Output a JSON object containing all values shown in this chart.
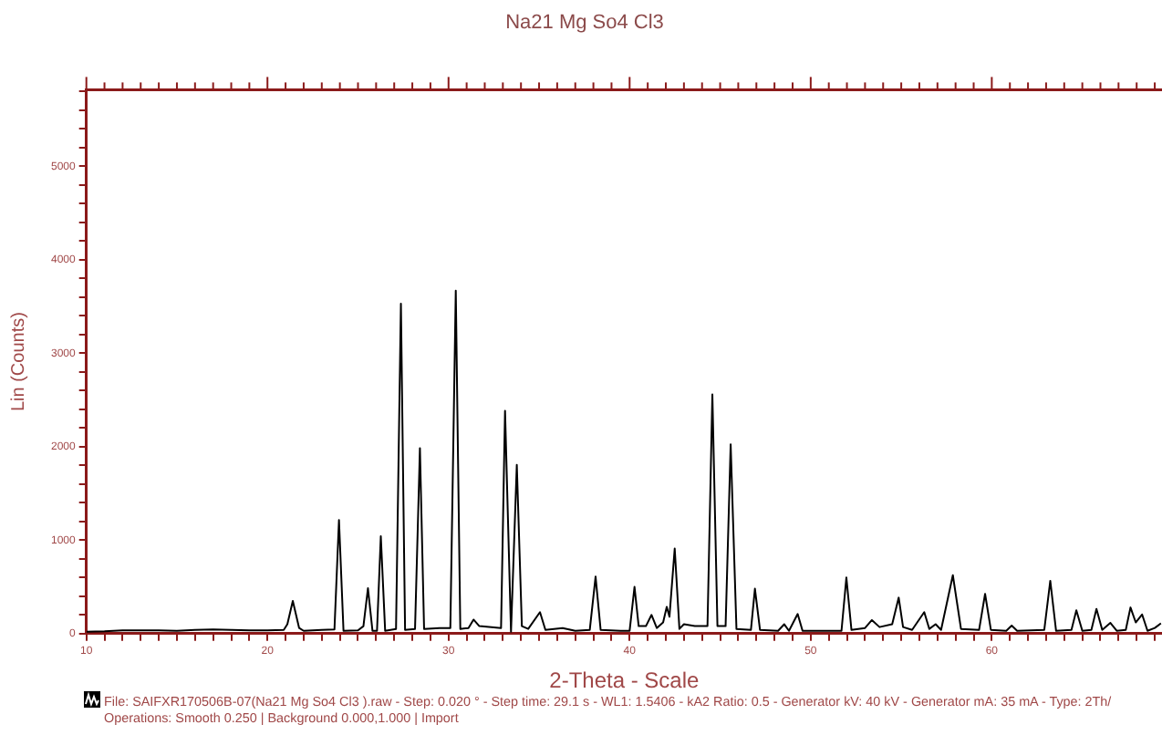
{
  "chart_data": {
    "type": "line",
    "title": "Na21 Mg So4 Cl3",
    "xlabel": "2-Theta - Scale",
    "ylabel": "Lin (Counts)",
    "annotations": [
      "File: SAIFXR170506B-07(Na21 Mg So4 Cl3 ).raw - Step: 0.020 ° - Step time: 29.1 s - WL1: 1.5406 - kA2 Ratio: 0.5 - Generator kV: 40 kV - Generator mA: 35 mA - Type: 2Th/",
      "Operations: Smooth 0.250 | Background 0.000,1.000 | Import"
    ],
    "xlim": [
      10,
      69.4
    ],
    "ylim": [
      0,
      5820
    ],
    "marker": "none",
    "xticks": [
      10,
      {
        "value": 11,
        "label": null
      },
      {
        "value": 12,
        "label": null
      },
      {
        "value": 13,
        "label": null
      },
      {
        "value": 14,
        "label": null
      },
      {
        "value": 15,
        "label": null
      },
      {
        "value": 16,
        "label": null
      },
      {
        "value": 17,
        "label": null
      },
      {
        "value": 18,
        "label": null
      },
      {
        "value": 19,
        "label": null
      },
      20,
      {
        "value": 21,
        "label": null
      },
      {
        "value": 22,
        "label": null
      },
      {
        "value": 23,
        "label": null
      },
      {
        "value": 24,
        "label": null
      },
      {
        "value": 25,
        "label": null
      },
      {
        "value": 26,
        "label": null
      },
      {
        "value": 27,
        "label": null
      },
      {
        "value": 28,
        "label": null
      },
      {
        "value": 29,
        "label": null
      },
      30,
      {
        "value": 31,
        "label": null
      },
      {
        "value": 32,
        "label": null
      },
      {
        "value": 33,
        "label": null
      },
      {
        "value": 34,
        "label": null
      },
      {
        "value": 35,
        "label": null
      },
      {
        "value": 36,
        "label": null
      },
      {
        "value": 37,
        "label": null
      },
      {
        "value": 38,
        "label": null
      },
      {
        "value": 39,
        "label": null
      },
      40,
      {
        "value": 41,
        "label": null
      },
      {
        "value": 42,
        "label": null
      },
      {
        "value": 43,
        "label": null
      },
      {
        "value": 44,
        "label": null
      },
      {
        "value": 45,
        "label": null
      },
      {
        "value": 46,
        "label": null
      },
      {
        "value": 47,
        "label": null
      },
      {
        "value": 48,
        "label": null
      },
      {
        "value": 49,
        "label": null
      },
      50,
      {
        "value": 51,
        "label": null
      },
      {
        "value": 52,
        "label": null
      },
      {
        "value": 53,
        "label": null
      },
      {
        "value": 54,
        "label": null
      },
      {
        "value": 55,
        "label": null
      },
      {
        "value": 56,
        "label": null
      },
      {
        "value": 57,
        "label": null
      },
      {
        "value": 58,
        "label": null
      },
      {
        "value": 59,
        "label": null
      },
      60,
      {
        "value": 61,
        "label": null
      },
      {
        "value": 62,
        "label": null
      },
      {
        "value": 63,
        "label": null
      },
      {
        "value": 64,
        "label": null
      },
      {
        "value": 65,
        "label": null
      },
      {
        "value": 66,
        "label": null
      },
      {
        "value": 67,
        "label": null
      },
      {
        "value": 68,
        "label": null
      },
      {
        "value": 69,
        "label": null
      }
    ],
    "yticks": [
      0,
      {
        "value": 200,
        "label": null
      },
      {
        "value": 400,
        "label": null
      },
      {
        "value": 600,
        "label": null
      },
      {
        "value": 800,
        "label": null
      },
      1000,
      {
        "value": 1200,
        "label": null
      },
      {
        "value": 1400,
        "label": null
      },
      {
        "value": 1600,
        "label": null
      },
      {
        "value": 1800,
        "label": null
      },
      2000,
      {
        "value": 2200,
        "label": null
      },
      {
        "value": 2400,
        "label": null
      },
      {
        "value": 2600,
        "label": null
      },
      {
        "value": 2800,
        "label": null
      },
      3000,
      {
        "value": 3200,
        "label": null
      },
      {
        "value": 3400,
        "label": null
      },
      {
        "value": 3600,
        "label": null
      },
      {
        "value": 3800,
        "label": null
      },
      4000,
      {
        "value": 4200,
        "label": null
      },
      {
        "value": 4400,
        "label": null
      },
      {
        "value": 4600,
        "label": null
      },
      {
        "value": 4800,
        "label": null
      },
      5000,
      {
        "value": 5200,
        "label": null
      },
      {
        "value": 5400,
        "label": null
      },
      {
        "value": 5600,
        "label": null
      },
      {
        "value": 5800,
        "label": null
      }
    ],
    "series": [
      {
        "color": "#000000",
        "x": [
          10,
          11,
          12,
          13,
          14,
          15,
          16,
          17,
          18,
          19,
          20,
          20.9,
          21.1,
          21.4,
          21.75,
          22,
          23,
          23.7,
          23.95,
          24.2,
          25,
          25.3,
          25.55,
          25.8,
          26.05,
          26.26,
          26.5,
          27.1,
          27.37,
          27.6,
          28.15,
          28.42,
          28.65,
          29.5,
          30.1,
          30.4,
          30.65,
          31.1,
          31.38,
          31.7,
          32.9,
          33.12,
          33.45,
          33.77,
          34.05,
          34.4,
          35.05,
          35.35,
          36.3,
          37,
          37.8,
          38.12,
          38.4,
          39.5,
          40,
          40.27,
          40.5,
          40.9,
          41.21,
          41.5,
          41.85,
          42.05,
          42.2,
          42.49,
          42.75,
          43,
          43.6,
          44.3,
          44.57,
          44.85,
          45.3,
          45.58,
          45.9,
          46.7,
          46.92,
          47.2,
          48.2,
          48.54,
          48.8,
          49.28,
          49.55,
          51.7,
          51.97,
          52.25,
          53,
          53.38,
          53.8,
          54.5,
          54.86,
          55.1,
          55.6,
          56.27,
          56.55,
          56.9,
          57.2,
          57.85,
          58.3,
          59.3,
          59.63,
          59.95,
          60.8,
          61.1,
          61.4,
          62.9,
          63.23,
          63.55,
          64.4,
          64.67,
          65,
          65.5,
          65.78,
          66.1,
          66.55,
          66.9,
          67.4,
          67.66,
          67.95,
          68.3,
          68.6,
          69,
          69.34
        ],
        "values": [
          20,
          25,
          35,
          35,
          35,
          30,
          40,
          45,
          40,
          35,
          35,
          40,
          100,
          350,
          60,
          30,
          40,
          45,
          1215,
          30,
          35,
          80,
          485,
          30,
          30,
          1042,
          30,
          50,
          3530,
          40,
          50,
          1985,
          50,
          60,
          60,
          3670,
          50,
          60,
          150,
          80,
          60,
          2385,
          20,
          1805,
          80,
          50,
          230,
          40,
          60,
          30,
          40,
          610,
          40,
          30,
          30,
          500,
          80,
          80,
          200,
          60,
          120,
          285,
          180,
          910,
          50,
          100,
          80,
          80,
          2560,
          80,
          80,
          2025,
          50,
          40,
          480,
          40,
          30,
          100,
          30,
          210,
          30,
          30,
          600,
          40,
          60,
          145,
          70,
          100,
          385,
          70,
          40,
          230,
          50,
          100,
          40,
          625,
          50,
          40,
          425,
          40,
          30,
          85,
          30,
          40,
          565,
          30,
          40,
          250,
          30,
          40,
          265,
          40,
          115,
          30,
          40,
          280,
          120,
          205,
          30,
          60,
          110
        ]
      }
    ]
  }
}
